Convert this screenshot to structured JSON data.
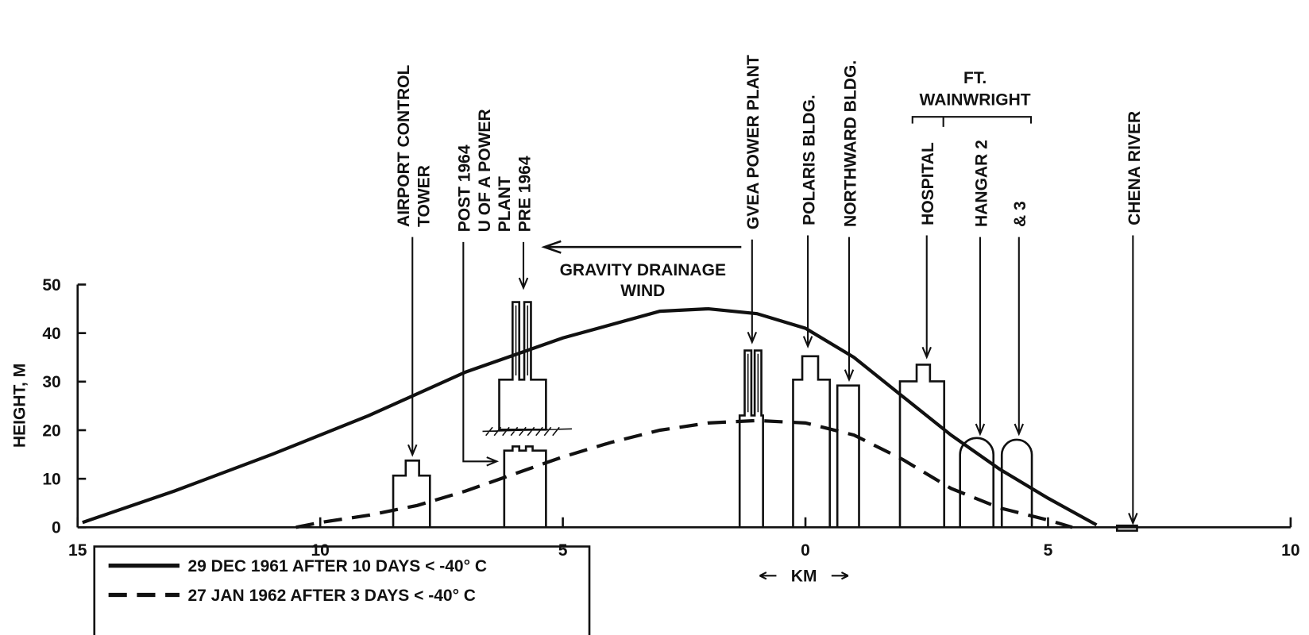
{
  "chart_data": {
    "type": "line",
    "y_label": "HEIGHT, M",
    "x_label": "KM",
    "xlim": [
      -15,
      10
    ],
    "ylim": [
      0,
      50
    ],
    "xticks": [
      {
        "value": -15,
        "label": "15"
      },
      {
        "value": -10,
        "label": "10"
      },
      {
        "value": -5,
        "label": "5"
      },
      0,
      5,
      10
    ],
    "yticks": [
      0,
      10,
      20,
      30,
      40,
      50
    ],
    "series": [
      {
        "name": "29 DEC 1961 AFTER 10 DAYS < -40° C",
        "style": "solid",
        "color": "#111111",
        "x": [
          -14.9,
          -13,
          -11,
          -9,
          -7,
          -5,
          -3,
          -2,
          -1,
          0,
          1,
          2,
          3,
          4,
          5,
          6
        ],
        "values": [
          1,
          7.5,
          15,
          23,
          32,
          39,
          44.5,
          45,
          44,
          41,
          35,
          27,
          19,
          12,
          6,
          0.5
        ]
      },
      {
        "name": "27 JAN 1962 AFTER 3 DAYS < -40° C",
        "style": "dashed",
        "color": "#111111",
        "x": [
          -10.5,
          -10,
          -9,
          -8,
          -7,
          -6,
          -5,
          -4,
          -3,
          -2,
          -1,
          0,
          1,
          2,
          3,
          4,
          5,
          5.5
        ],
        "values": [
          0,
          1,
          2.5,
          4.5,
          7.5,
          11,
          14.5,
          17.5,
          20,
          21.5,
          22,
          21.5,
          19,
          14,
          8,
          4,
          1.5,
          0
        ]
      }
    ],
    "annotations": [
      {
        "lines": [
          "AIRPORT CONTROL",
          "TOWER"
        ],
        "x": -8.1
      },
      {
        "lines": [
          "POST 1964",
          "U OF A POWER",
          "PLANT",
          "PRE 1964"
        ],
        "x": -5.8
      },
      {
        "lines": [
          "GVEA POWER PLANT"
        ],
        "x": -1.1
      },
      {
        "lines": [
          "POLARIS BLDG."
        ],
        "x": 0.05
      },
      {
        "lines": [
          "NORTHWARD BLDG."
        ],
        "x": 0.9
      },
      {
        "lines": [
          "HOSPITAL"
        ],
        "x": 2.5
      },
      {
        "lines": [
          "HANGAR 2"
        ],
        "x": 3.6
      },
      {
        "lines": [
          "& 3"
        ],
        "x": 4.4
      },
      {
        "lines": [
          "CHENA RIVER"
        ],
        "x": 6.75
      }
    ],
    "group_label": [
      "FT.",
      "WAINWRIGHT"
    ],
    "wind_label": [
      "GRAVITY DRAINAGE",
      "WIND"
    ]
  }
}
